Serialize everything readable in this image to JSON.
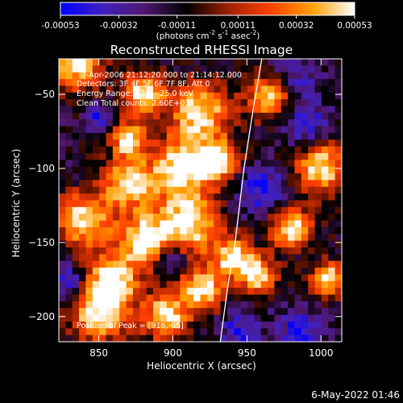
{
  "colorbar": {
    "ticks": [
      "-0.00053",
      "-0.00032",
      "-0.00011",
      "0.00011",
      "0.00032",
      "0.00053"
    ],
    "unit_label_prefix": "(photons cm",
    "unit_exp1": "-2",
    "unit_mid1": " s",
    "unit_exp2": "-1",
    "unit_mid2": " asec",
    "unit_exp3": "-2",
    "unit_suffix": ")"
  },
  "annotations": {
    "time": "7-Apr-2006 21:12:20.000 to 21:14:12.000",
    "detectors": "Detectors: 3F 4F 5F 6F 7F 8F, Att 0",
    "energy": "Energy Range: 12.0 - 25.0 keV",
    "clean": "Clean     Total counts: 2.60E+03",
    "peak": "Position of Peak = [916,-65]"
  },
  "footer": {
    "timestamp": "6-May-2022 01:46"
  },
  "chart_data": {
    "type": "heatmap",
    "title": "Reconstructed RHESSI Image",
    "xlabel": "Heliocentric X (arcsec)",
    "ylabel": "Heliocentric Y (arcsec)",
    "xlim": [
      823,
      1014
    ],
    "ylim": [
      -217,
      -26
    ],
    "xticks": [
      850,
      900,
      950,
      1000
    ],
    "yticks": [
      -50,
      -100,
      -150,
      -200
    ],
    "ytick_labels": [
      "−50",
      "−100",
      "−150",
      "−200"
    ],
    "colorscale": [
      "#0000ff",
      "#4020c0",
      "#501870",
      "#000000",
      "#a02000",
      "#ff4000",
      "#ffa000",
      "#ffffff"
    ],
    "value_range": [
      -0.00053,
      0.00053
    ],
    "grid_cells": 42,
    "hotspots": [
      [
        835,
        -30,
        12
      ],
      [
        880,
        -50,
        10
      ],
      [
        918,
        -62,
        14
      ],
      [
        966,
        -50,
        11
      ],
      [
        1000,
        -100,
        12
      ],
      [
        870,
        -110,
        12
      ],
      [
        905,
        -100,
        14
      ],
      [
        930,
        -95,
        10
      ],
      [
        840,
        -135,
        13
      ],
      [
        910,
        -138,
        15
      ],
      [
        880,
        -148,
        12
      ],
      [
        860,
        -175,
        12
      ],
      [
        920,
        -182,
        10
      ],
      [
        850,
        -198,
        13
      ],
      [
        895,
        -200,
        11
      ],
      [
        957,
        -172,
        9
      ],
      [
        980,
        -140,
        10
      ],
      [
        1005,
        -175,
        8
      ],
      [
        940,
        -160,
        9
      ],
      [
        870,
        -80,
        8
      ]
    ],
    "coldspots": [
      [
        980,
        -40,
        12
      ],
      [
        990,
        -70,
        10
      ],
      [
        960,
        -115,
        12
      ],
      [
        985,
        -210,
        11
      ],
      [
        945,
        -210,
        9
      ],
      [
        830,
        -175,
        7
      ],
      [
        850,
        -65,
        7
      ],
      [
        900,
        -160,
        7
      ]
    ],
    "limb_line": {
      "x": [
        932,
        937,
        942,
        948,
        955,
        960
      ],
      "y": [
        -217,
        -180,
        -150,
        -100,
        -55,
        -26
      ]
    }
  }
}
